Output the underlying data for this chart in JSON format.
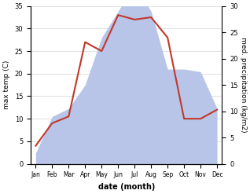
{
  "months": [
    "Jan",
    "Feb",
    "Mar",
    "Apr",
    "May",
    "Jun",
    "Jul",
    "Aug",
    "Sep",
    "Oct",
    "Nov",
    "Dec"
  ],
  "temperature": [
    4,
    9,
    10.5,
    27,
    25,
    33,
    32,
    32.5,
    28,
    10,
    10,
    12
  ],
  "precipitation": [
    2,
    9,
    10.5,
    15,
    24,
    29,
    34,
    29,
    18,
    18,
    17.5,
    10.5
  ],
  "temp_color": "#c0392b",
  "precip_color": "#b8c4e8",
  "ylim_temp": [
    0,
    35
  ],
  "ylim_precip": [
    0,
    30
  ],
  "xlabel": "date (month)",
  "ylabel_left": "max temp (C)",
  "ylabel_right": "med. precipitation (kg/m2)",
  "bg_color": "#ffffff",
  "fig_width": 3.18,
  "fig_height": 2.47,
  "dpi": 100
}
